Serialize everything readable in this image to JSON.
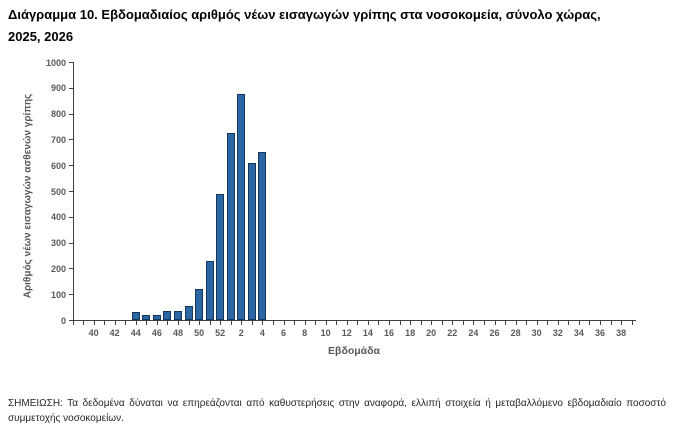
{
  "header": {
    "title_line1": "Διάγραμμα 10. Εβδομαδιαίος αριθμός νέων εισαγωγών γρίπης στα νοσοκομεία, σύνολο χώρας,",
    "title_line2": "2025, 2026"
  },
  "note": {
    "text": "ΣΗΜΕΙΩΣΗ: Τα δεδομένα δύναται να επηρεάζονται από καθυστερήσεις στην αναφορά, ελλιπή στοιχεία ή μεταβαλλόμενο εβδομαδιαίο ποσοστό συμμετοχής νοσοκομείων."
  },
  "chart_data": {
    "type": "bar",
    "title": "Διάγραμμα 10. Εβδομαδιαίος αριθμός νέων εισαγωγών γρίπης στα νοσοκομεία, σύνολο χώρας, 2025, 2026",
    "xlabel": "Εβδομάδα",
    "ylabel": "Αριθμός νέων εισαγωγών ασθενών γρίπης",
    "ylim": [
      0,
      1000
    ],
    "ytick_interval": 100,
    "ytick_labels": [
      "0",
      "100",
      "200",
      "300",
      "400",
      "500",
      "600",
      "700",
      "800",
      "900",
      "1000"
    ],
    "x_axis_week_sequence": "weeks 38–52 of 2025 followed by weeks 1–39 of 2026, minor tick every week",
    "xtick_labels": [
      "40",
      "42",
      "44",
      "46",
      "48",
      "50",
      "52",
      "2",
      "4",
      "6",
      "8",
      "10",
      "12",
      "14",
      "16",
      "18",
      "20",
      "22",
      "24",
      "26",
      "28",
      "30",
      "32",
      "34",
      "36",
      "38"
    ],
    "grid": "off",
    "legend": "none",
    "categories": [
      "44",
      "45",
      "46",
      "47",
      "48",
      "49",
      "50",
      "51",
      "52",
      "1",
      "2",
      "3",
      "4"
    ],
    "values": [
      30,
      20,
      20,
      35,
      35,
      55,
      120,
      230,
      490,
      725,
      875,
      610,
      650
    ],
    "bar_color": "#2b67a5",
    "bar_border_color": "#16365c"
  }
}
